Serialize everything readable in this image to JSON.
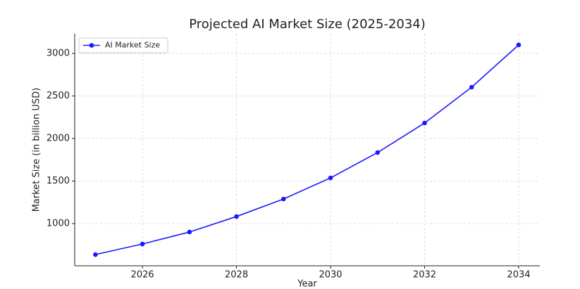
{
  "chart_data": {
    "type": "line",
    "title": "Projected AI Market Size (2025-2034)",
    "x_label": "Year",
    "y_label": "Market Size (in billion USD)",
    "x": [
      2025,
      2026,
      2027,
      2028,
      2029,
      2030,
      2031,
      2032,
      2033,
      2034
    ],
    "series": [
      {
        "name": "AI Market Size",
        "color": "#1a1aff",
        "values": [
          636,
          760,
          901,
          1083,
          1289,
          1537,
          1835,
          2182,
          2603,
          3100
        ]
      }
    ],
    "xlim": [
      2024.56,
      2034.45
    ],
    "xticks": [
      2026,
      2028,
      2030,
      2032,
      2034
    ],
    "ylim": [
      504,
      3231
    ],
    "yticks": [
      1000,
      1500,
      2000,
      2500,
      3000
    ],
    "grid": true,
    "legend": "upper left"
  }
}
